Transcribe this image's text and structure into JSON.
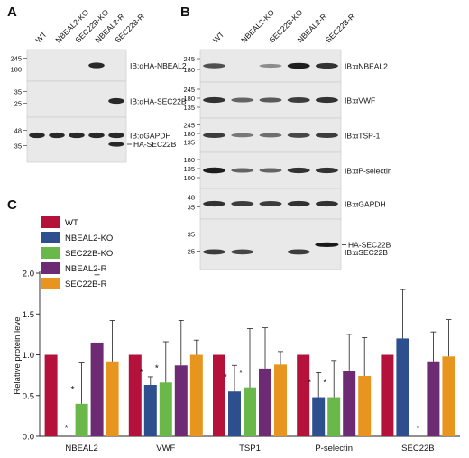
{
  "panel_a": {
    "letter": "A",
    "lanes": [
      "WT",
      "NBEAL2-KO",
      "SEC22B-KO",
      "NBEAL2-R",
      "SEC22B-R"
    ],
    "blots": [
      {
        "label": "IB:αHA-NBEAL2",
        "mw": [
          "245",
          "180"
        ],
        "bands": [
          0,
          0,
          0,
          0.9,
          0
        ]
      },
      {
        "label": "IB:αHA-SEC22B",
        "mw": [
          "35",
          "25"
        ],
        "bands": [
          0,
          0,
          0,
          0,
          0.9
        ]
      },
      {
        "label": "IB:αGAPDH",
        "mw": [
          "48",
          "35"
        ],
        "bands": [
          0.9,
          0.9,
          0.9,
          0.9,
          0.9
        ],
        "extra_label": "HA-SEC22B"
      }
    ]
  },
  "panel_b": {
    "letter": "B",
    "lanes": [
      "WT",
      "NBEAL2-KO",
      "SEC22B-KO",
      "NBEAL2-R",
      "SEC22B-R"
    ],
    "blots": [
      {
        "label": "IB:αNBEAL2",
        "mw": [
          "245",
          "180"
        ],
        "bands": [
          0.7,
          0,
          0.4,
          0.95,
          0.85
        ]
      },
      {
        "label": "IB:αVWF",
        "mw": [
          "245",
          "180",
          "135"
        ],
        "bands": [
          0.85,
          0.6,
          0.65,
          0.8,
          0.85
        ]
      },
      {
        "label": "IB:αTSP-1",
        "mw": [
          "245",
          "180",
          "135"
        ],
        "bands": [
          0.8,
          0.5,
          0.55,
          0.75,
          0.8
        ]
      },
      {
        "label": "IB:αP-selectin",
        "mw": [
          "180",
          "135",
          "100"
        ],
        "bands": [
          0.95,
          0.6,
          0.6,
          0.85,
          0.85
        ]
      },
      {
        "label": "IB:αGAPDH",
        "mw": [
          "48",
          "35"
        ],
        "bands": [
          0.85,
          0.8,
          0.8,
          0.85,
          0.85
        ]
      },
      {
        "label": "IB:αSEC22B",
        "mw": [
          "35",
          "25"
        ],
        "bands": [
          0.8,
          0.75,
          0,
          0.8,
          0
        ],
        "extra_label": "HA-SEC22B"
      }
    ]
  },
  "panel_c": {
    "letter": "C"
  },
  "chart_data": {
    "type": "bar",
    "categories": [
      "NBEAL2",
      "VWF",
      "TSP1",
      "P-selectin",
      "SEC22B"
    ],
    "ylabel": "Relative protein level",
    "xlabel": "",
    "ylim": [
      0,
      2.0
    ],
    "yticks": [
      "0.0",
      "0.5",
      "1.0",
      "1.5",
      "2.0"
    ],
    "legend_position": "top-left",
    "grid": false,
    "significance_mark": "*",
    "series": [
      {
        "name": "WT",
        "color": "#b5123b",
        "values": [
          1.0,
          1.0,
          1.0,
          1.0,
          1.0
        ],
        "errors": [
          0,
          0,
          0,
          0,
          0
        ],
        "significant": [
          false,
          false,
          false,
          false,
          false
        ]
      },
      {
        "name": "NBEAL2-KO",
        "color": "#2d4f8e",
        "values": [
          0.0,
          0.63,
          0.55,
          0.48,
          1.2
        ],
        "errors": [
          0,
          0.1,
          0.32,
          0.3,
          0.6
        ],
        "significant": [
          true,
          true,
          true,
          true,
          false
        ]
      },
      {
        "name": "SEC22B-KO",
        "color": "#6bb84a",
        "values": [
          0.4,
          0.66,
          0.6,
          0.48,
          0.0
        ],
        "errors": [
          0.5,
          0.5,
          0.72,
          0.45,
          0
        ],
        "significant": [
          true,
          true,
          true,
          true,
          true
        ]
      },
      {
        "name": "NBEAL2-R",
        "color": "#6d2b74",
        "values": [
          1.15,
          0.87,
          0.83,
          0.8,
          0.92
        ],
        "errors": [
          0.83,
          0.55,
          0.5,
          0.45,
          0.36
        ],
        "significant": [
          false,
          false,
          false,
          false,
          false
        ]
      },
      {
        "name": "SEC22B-R",
        "color": "#e8951f",
        "values": [
          0.92,
          1.0,
          0.88,
          0.74,
          0.98
        ],
        "errors": [
          0.5,
          0.18,
          0.16,
          0.47,
          0.45
        ],
        "significant": [
          false,
          false,
          false,
          false,
          false
        ]
      }
    ]
  }
}
